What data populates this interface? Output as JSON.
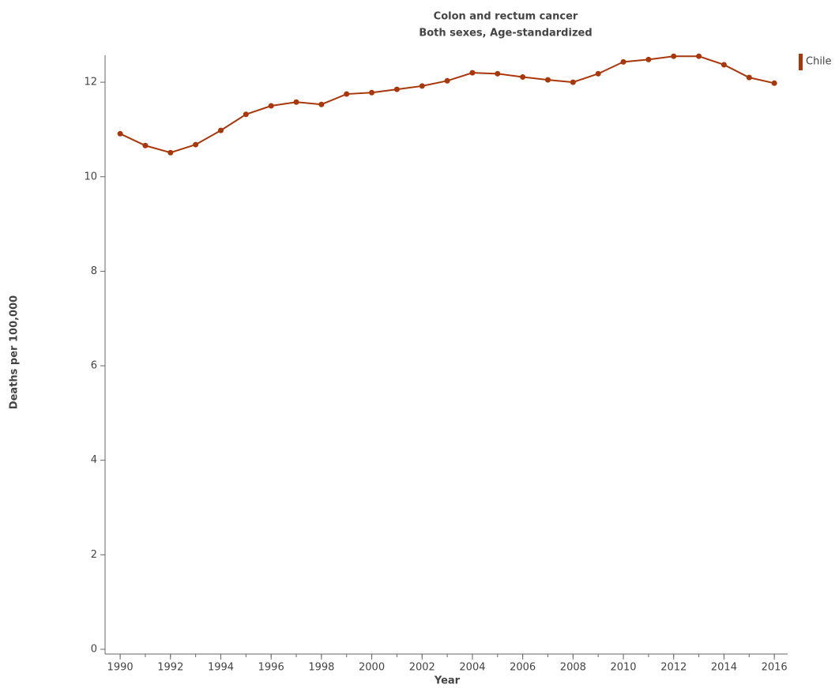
{
  "chart_data": {
    "type": "line",
    "title": "Colon and rectum cancer",
    "subtitle": "Both sexes, Age-standardized",
    "x_label": "Year",
    "y_label": "Deaths per 100,000",
    "x": [
      1990,
      1991,
      1992,
      1993,
      1994,
      1995,
      1996,
      1997,
      1998,
      1999,
      2000,
      2001,
      2002,
      2003,
      2004,
      2005,
      2006,
      2007,
      2008,
      2009,
      2010,
      2011,
      2012,
      2013,
      2014,
      2015,
      2016
    ],
    "series": [
      {
        "name": "Chile",
        "color": "#a8380b",
        "values": [
          10.91,
          10.66,
          10.51,
          10.68,
          10.98,
          11.32,
          11.5,
          11.58,
          11.53,
          11.75,
          11.78,
          11.85,
          11.92,
          12.03,
          12.2,
          12.18,
          12.11,
          12.05,
          12.0,
          12.18,
          12.43,
          12.48,
          12.55,
          12.55,
          12.37,
          12.1,
          11.98
        ]
      }
    ],
    "xlim": [
      1989.4,
      2016.53
    ],
    "xticks": [
      1990,
      1992,
      1994,
      1996,
      1998,
      2000,
      2002,
      2004,
      2006,
      2008,
      2010,
      2012,
      2014,
      2016
    ],
    "ylim": [
      0,
      12.57
    ],
    "yticks": [
      0,
      2,
      4,
      6,
      8,
      10,
      12
    ],
    "legend": "top-right"
  }
}
